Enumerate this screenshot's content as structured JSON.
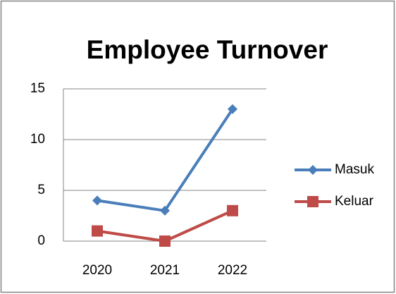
{
  "chart_data": {
    "type": "line",
    "title": "Employee Turnover",
    "categories": [
      "2020",
      "2021",
      "2022"
    ],
    "series": [
      {
        "name": "Masuk",
        "color": "#4a7ebb",
        "marker": "diamond",
        "values": [
          4,
          3,
          13
        ]
      },
      {
        "name": "Keluar",
        "color": "#be4b48",
        "marker": "square",
        "values": [
          1,
          0,
          3
        ]
      }
    ],
    "ylim": [
      0,
      15
    ],
    "yticks": [
      0,
      5,
      10,
      15
    ],
    "grid": true,
    "legend": "right"
  }
}
